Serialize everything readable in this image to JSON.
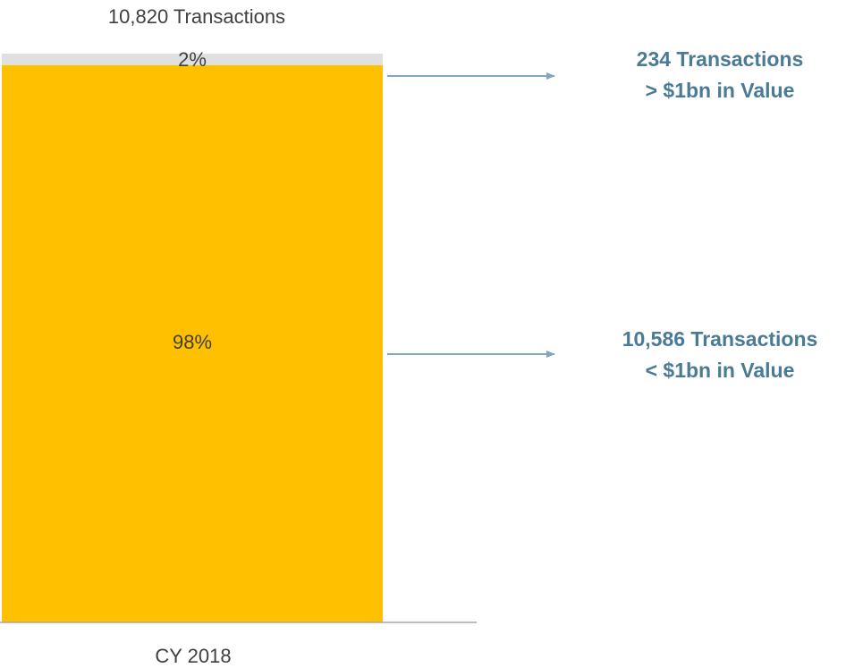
{
  "chart_data": {
    "type": "stacked_bar",
    "title": "10,820 Transactions",
    "categories": [
      "CY 2018"
    ],
    "series": [
      {
        "color": "#FFC000",
        "values": [
          98
        ],
        "value_labels": [
          "98%"
        ]
      },
      {
        "color": "#E0E0E0",
        "values": [
          2
        ],
        "value_labels": [
          "2%"
        ]
      }
    ],
    "ylim": [
      0,
      100
    ],
    "annotations": [
      {
        "lines": [
          "10,586 Transactions",
          "< $1bn in Value"
        ]
      },
      {
        "lines": [
          "234 Transactions",
          "> $1bn in Value"
        ]
      }
    ]
  }
}
